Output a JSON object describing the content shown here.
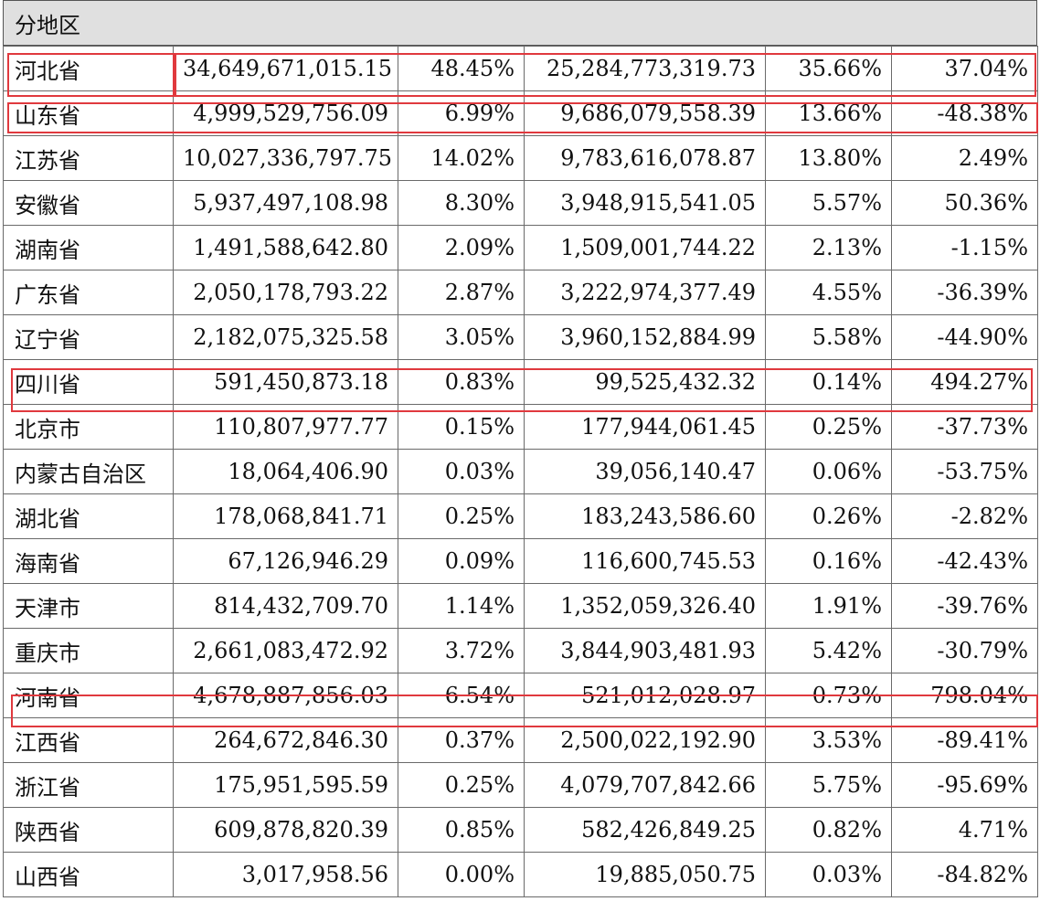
{
  "section_label": "分地区",
  "rows": [
    [
      "河北省",
      "34,649,671,015.15",
      "48.45%",
      "25,284,773,319.73",
      "35.66%",
      "37.04%"
    ],
    [
      "山东省",
      "4,999,529,756.09",
      "6.99%",
      "9,686,079,558.39",
      "13.66%",
      "-48.38%"
    ],
    [
      "江苏省",
      "10,027,336,797.75",
      "14.02%",
      "9,783,616,078.87",
      "13.80%",
      "2.49%"
    ],
    [
      "安徽省",
      "5,937,497,108.98",
      "8.30%",
      "3,948,915,541.05",
      "5.57%",
      "50.36%"
    ],
    [
      "湖南省",
      "1,491,588,642.80",
      "2.09%",
      "1,509,001,744.22",
      "2.13%",
      "-1.15%"
    ],
    [
      "广东省",
      "2,050,178,793.22",
      "2.87%",
      "3,222,974,377.49",
      "4.55%",
      "-36.39%"
    ],
    [
      "辽宁省",
      "2,182,075,325.58",
      "3.05%",
      "3,960,152,884.99",
      "5.58%",
      "-44.90%"
    ],
    [
      "四川省",
      "591,450,873.18",
      "0.83%",
      "99,525,432.32",
      "0.14%",
      "494.27%"
    ],
    [
      "北京市",
      "110,807,977.77",
      "0.15%",
      "177,944,061.45",
      "0.25%",
      "-37.73%"
    ],
    [
      "内蒙古自治区",
      "18,064,406.90",
      "0.03%",
      "39,056,140.47",
      "0.06%",
      "-53.75%"
    ],
    [
      "湖北省",
      "178,068,841.71",
      "0.25%",
      "183,243,586.60",
      "0.26%",
      "-2.82%"
    ],
    [
      "海南省",
      "67,126,946.29",
      "0.09%",
      "116,600,745.53",
      "0.16%",
      "-42.43%"
    ],
    [
      "天津市",
      "814,432,709.70",
      "1.14%",
      "1,352,059,326.40",
      "1.91%",
      "-39.76%"
    ],
    [
      "重庆市",
      "2,661,083,472.92",
      "3.72%",
      "3,844,903,481.93",
      "5.42%",
      "-30.79%"
    ],
    [
      "河南省",
      "4,678,887,856.03",
      "6.54%",
      "521,012,028.97",
      "0.73%",
      "798.04%"
    ],
    [
      "江西省",
      "264,672,846.30",
      "0.37%",
      "2,500,022,192.90",
      "3.53%",
      "-89.41%"
    ],
    [
      "浙江省",
      "175,951,595.59",
      "0.25%",
      "4,079,707,842.66",
      "5.75%",
      "-95.69%"
    ],
    [
      "陕西省",
      "609,878,820.39",
      "0.85%",
      "582,426,849.25",
      "0.82%",
      "4.71%"
    ],
    [
      "山西省",
      "3,017,958.56",
      "0.00%",
      "19,885,050.75",
      "0.03%",
      "-84.82%"
    ]
  ],
  "highlight_color": "#e0393e"
}
